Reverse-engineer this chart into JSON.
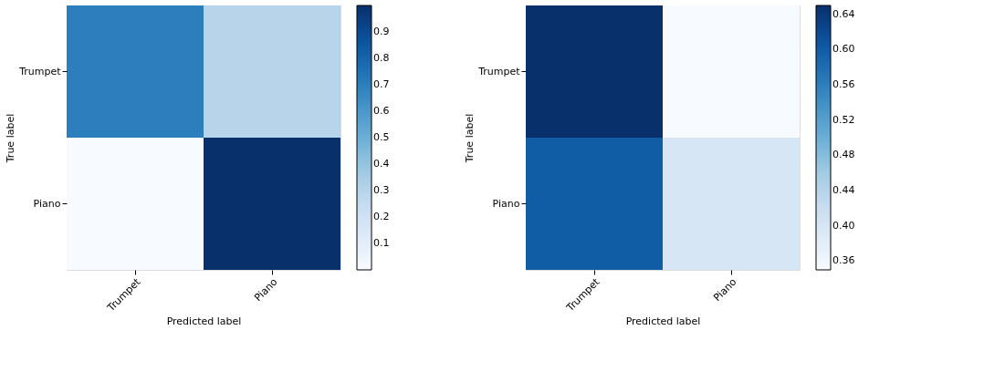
{
  "chart_data": [
    {
      "type": "heatmap",
      "xlabel": "Predicted label",
      "ylabel": "True label",
      "categories": [
        "Trumpet",
        "Piano"
      ],
      "y_categories": [
        "Trumpet",
        "Piano"
      ],
      "cells": [
        [
          0.7,
          0.3
        ],
        [
          0.0,
          1.0
        ]
      ],
      "clim": [
        0.0,
        1.0
      ],
      "cticks": [
        0.1,
        0.2,
        0.3,
        0.4,
        0.5,
        0.6,
        0.7,
        0.8,
        0.9
      ]
    },
    {
      "type": "heatmap",
      "xlabel": "Predicted label",
      "ylabel": "True label",
      "categories": [
        "Trumpet",
        "Piano"
      ],
      "y_categories": [
        "Trumpet",
        "Piano"
      ],
      "cells": [
        [
          0.65,
          0.35
        ],
        [
          0.6,
          0.4
        ]
      ],
      "clim": [
        0.35,
        0.65
      ],
      "cticks": [
        0.36,
        {
          "value": 0.4,
          "label": "0.40"
        },
        0.44,
        0.48,
        0.52,
        0.56,
        {
          "value": 0.6,
          "label": "0.60"
        },
        0.64
      ]
    }
  ]
}
